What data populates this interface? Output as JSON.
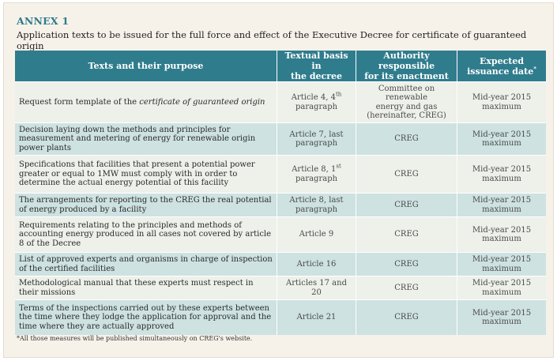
{
  "annex": {
    "title": "ANNEX 1",
    "subtitle": "Application texts to be issued for the full force and effect of the Executive Decree for certificate of guaranteed origin"
  },
  "table": {
    "headers": {
      "purpose": "Texts and their purpose",
      "basis_line1": "Textual basis in",
      "basis_line2": "the decree",
      "authority_line1": "Authority responsible",
      "authority_line2": "for its enactment",
      "date_line1": "Expected",
      "date_line2": "issuance date",
      "date_mark": "*"
    },
    "rows": [
      {
        "purpose_pre": "Request form template of the ",
        "purpose_italic": "certificate of guaranteed origin",
        "basis_pre": "Article 4, 4",
        "basis_sup": "th",
        "basis_post": "paragraph",
        "authority_line1": "Committee on renewable",
        "authority_line2": "energy and gas",
        "authority_line3": "(hereinafter, CREG)",
        "date_line1": "Mid-year 2015",
        "date_line2": "maximum"
      },
      {
        "purpose": "Decision laying down the methods and principles for measurement and metering of energy for renewable origin power plants",
        "basis_line1": "Article 7, last",
        "basis_line2": "paragraph",
        "authority": "CREG",
        "date_line1": "Mid-year 2015",
        "date_line2": "maximum"
      },
      {
        "purpose": "Specifications that facilities that present a potential power greater or equal to 1MW must comply with in order to determine the actual energy potential of this facility",
        "basis_pre": "Article 8, 1",
        "basis_sup": "st",
        "basis_post": "paragraph",
        "authority": "CREG",
        "date_line1": "Mid-year 2015",
        "date_line2": "maximum"
      },
      {
        "purpose": "The arrangements for reporting to the CREG the real potential of energy produced by a facility",
        "basis_line1": "Article 8, last",
        "basis_line2": "paragraph",
        "authority": "CREG",
        "date_line1": "Mid-year 2015",
        "date_line2": "maximum"
      },
      {
        "purpose": "Requirements relating to the principles and methods of accounting energy produced in all cases not covered by article 8 of the Decree",
        "basis": "Article 9",
        "authority": "CREG",
        "date_line1": "Mid-year 2015",
        "date_line2": "maximum"
      },
      {
        "purpose": "List of approved experts and organisms in charge of inspection of the certified facilities",
        "basis": "Article 16",
        "authority": "CREG",
        "date_line1": "Mid-year 2015",
        "date_line2": "maximum"
      },
      {
        "purpose": "Methodological manual that these experts must respect in their missions",
        "basis": "Articles 17 and 20",
        "authority": "CREG",
        "date_line1": "Mid-year 2015",
        "date_line2": "maximum"
      },
      {
        "purpose": "Terms of the inspections carried out by these experts between the time where they lodge the application for approval and the time where they are actually approved",
        "basis": "Article 21",
        "authority": "CREG",
        "date_line1": "Mid-year 2015",
        "date_line2": "maximum"
      }
    ]
  },
  "footnote": "*All those measures will be published simultaneously on CREG's website.",
  "colors": {
    "accent": "#2f7c8d",
    "row_light": "#eef0ea",
    "row_dark": "#cde2e1",
    "panel_bg": "#f7f2e9"
  }
}
